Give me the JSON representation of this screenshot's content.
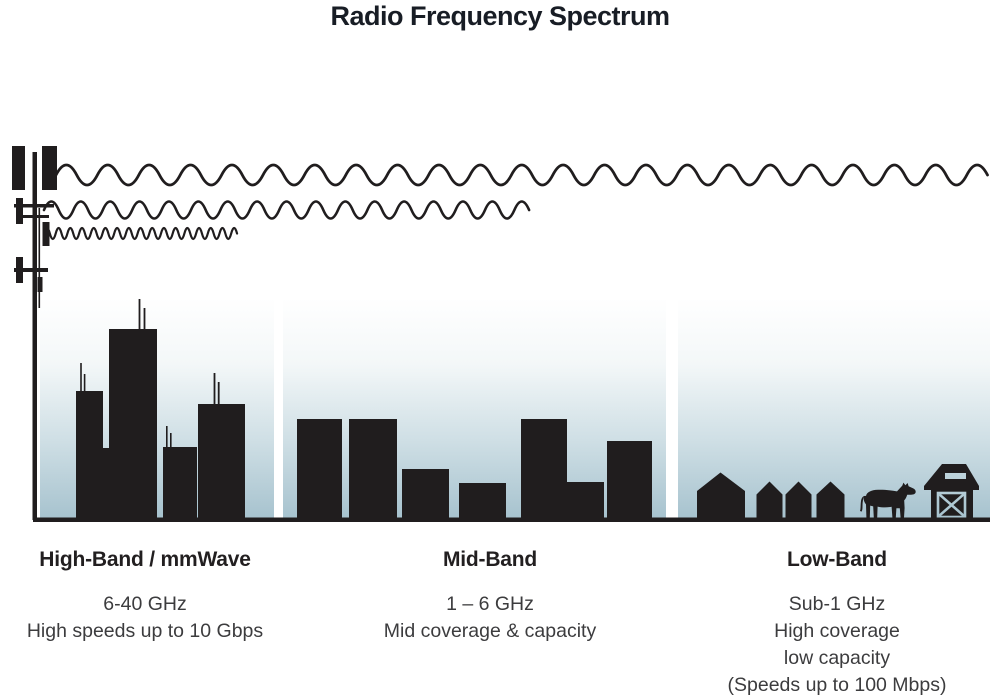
{
  "title": "Radio Frequency Spectrum",
  "colors": {
    "silhouette": "#201d1e",
    "panel_gradient_top": "#ffffff",
    "panel_gradient_bottom": "#a6c2ce",
    "title_text": "#181d25",
    "heading_text": "#221f20",
    "body_text": "#3c3c3e"
  },
  "icons": [
    "cell-tower-icon",
    "long-wave-icon",
    "mid-wave-icon",
    "short-wave-icon",
    "skyscrapers-icon",
    "mid-rise-buildings-icon",
    "houses-icon",
    "cow-icon",
    "barn-icon",
    "ground-line"
  ],
  "bands": [
    {
      "heading": "High-Band / mmWave",
      "lines": [
        "6-40 GHz",
        "High speeds up to 10 Gbps"
      ]
    },
    {
      "heading": "Mid-Band",
      "lines": [
        "1 – 6 GHz",
        "Mid coverage & capacity"
      ]
    },
    {
      "heading": "Low-Band",
      "lines": [
        "Sub-1 GHz",
        "High coverage",
        "low capacity",
        "(Speeds up to 100 Mbps)"
      ]
    }
  ]
}
